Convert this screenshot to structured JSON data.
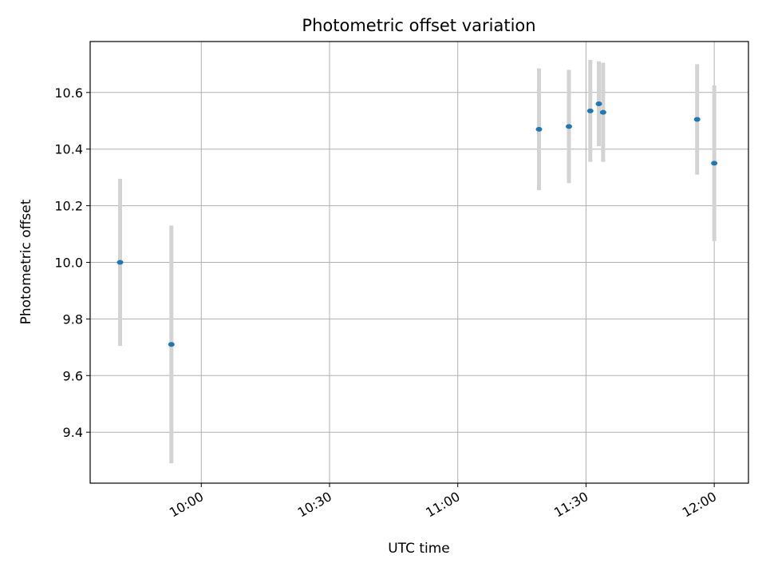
{
  "chart_data": {
    "type": "scatter",
    "title": "Photometric offset variation",
    "xlabel": "UTC time",
    "ylabel": "Photometric offset",
    "x_tick_labels": [
      "10:00",
      "10:30",
      "11:00",
      "11:30",
      "12:00"
    ],
    "x_tick_minutes": [
      600,
      630,
      660,
      690,
      720
    ],
    "y_tick_labels": [
      "9.4",
      "9.6",
      "9.8",
      "10.0",
      "10.2",
      "10.4",
      "10.6"
    ],
    "y_tick_values": [
      9.4,
      9.6,
      9.8,
      10.0,
      10.2,
      10.4,
      10.6
    ],
    "xlim": [
      "09:34",
      "12:08"
    ],
    "ylim": [
      9.22,
      10.78
    ],
    "grid": true,
    "colors": {
      "points": "#1f77b4",
      "error_bars": "#d3d3d3",
      "grid": "#b0b0b0"
    },
    "points": [
      {
        "time": "09:41",
        "y": 10.0,
        "err": 0.295
      },
      {
        "time": "09:53",
        "y": 9.71,
        "err": 0.42
      },
      {
        "time": "11:19",
        "y": 10.47,
        "err": 0.215
      },
      {
        "time": "11:26",
        "y": 10.48,
        "err": 0.2
      },
      {
        "time": "11:31",
        "y": 10.535,
        "err": 0.18
      },
      {
        "time": "11:33",
        "y": 10.56,
        "err": 0.15
      },
      {
        "time": "11:34",
        "y": 10.53,
        "err": 0.175
      },
      {
        "time": "11:56",
        "y": 10.505,
        "err": 0.195
      },
      {
        "time": "12:00",
        "y": 10.35,
        "err": 0.275
      }
    ]
  }
}
